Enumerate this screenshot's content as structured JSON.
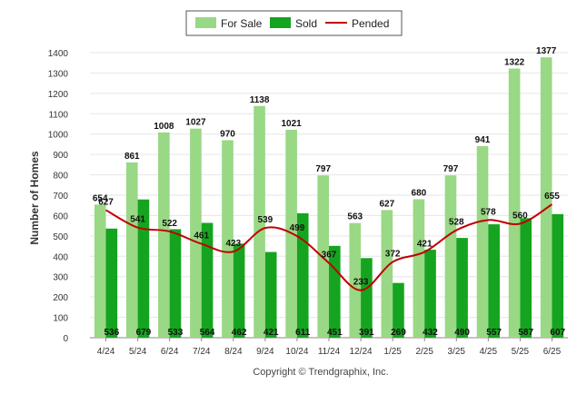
{
  "chart_data": {
    "type": "bar",
    "categories": [
      "4/24",
      "5/24",
      "6/24",
      "7/24",
      "8/24",
      "9/24",
      "10/24",
      "11/24",
      "12/24",
      "1/25",
      "2/25",
      "3/25",
      "4/25",
      "5/25",
      "6/25"
    ],
    "series": [
      {
        "name": "For Sale",
        "type": "bar",
        "color": "#99d884",
        "values": [
          654,
          861,
          1008,
          1027,
          970,
          1138,
          1021,
          797,
          563,
          627,
          680,
          797,
          941,
          1322,
          1377
        ]
      },
      {
        "name": "Sold",
        "type": "bar",
        "color": "#15a41f",
        "values": [
          536,
          679,
          533,
          564,
          462,
          421,
          611,
          451,
          391,
          269,
          432,
          490,
          557,
          587,
          607
        ]
      },
      {
        "name": "Pended",
        "type": "line",
        "color": "#c00000",
        "values": [
          627,
          541,
          522,
          461,
          423,
          539,
          499,
          367,
          233,
          372,
          421,
          528,
          578,
          560,
          655
        ]
      }
    ],
    "ylabel": "Number of Homes",
    "xlabel": "",
    "ylim": [
      0,
      1400
    ],
    "yticks": [
      0,
      100,
      200,
      300,
      400,
      500,
      600,
      700,
      800,
      900,
      1000,
      1100,
      1200,
      1300,
      1400
    ],
    "grid": true,
    "legend_position": "top-center"
  },
  "footer": {
    "copyright": "Copyright © Trendgraphix, Inc."
  }
}
